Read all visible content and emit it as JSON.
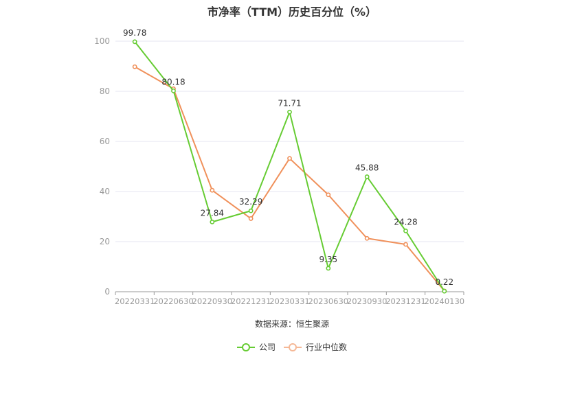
{
  "chart_data": {
    "type": "line",
    "title": "市净率（TTM）历史百分位（%）",
    "categories": [
      "20220331",
      "20220630",
      "20220930",
      "20221231",
      "20230331",
      "20230630",
      "20230930",
      "20231231",
      "20240130"
    ],
    "ylim": [
      0,
      100
    ],
    "yticks": [
      0,
      20,
      40,
      60,
      80,
      100
    ],
    "grid": true,
    "legend_position": "bottom",
    "series": [
      {
        "name": "公司",
        "color": "#66cc33",
        "values": [
          99.78,
          80.18,
          27.84,
          32.29,
          71.71,
          9.35,
          45.88,
          24.28,
          0.22
        ],
        "labels": [
          "99.78",
          "80.18",
          "27.84",
          "32.29",
          "71.71",
          "9.35",
          "45.88",
          "24.28",
          "0.22"
        ]
      },
      {
        "name": "行业中位数",
        "color": "#f0905a",
        "values": [
          89.8,
          81.0,
          40.5,
          29.2,
          53.2,
          38.7,
          21.3,
          18.9,
          0.3
        ]
      }
    ]
  },
  "source_note": "数据来源：恒生聚源",
  "colors": {
    "axis": "#999999",
    "grid": "#e6e6f0",
    "tick_text": "#999999",
    "label_text": "#333333"
  }
}
